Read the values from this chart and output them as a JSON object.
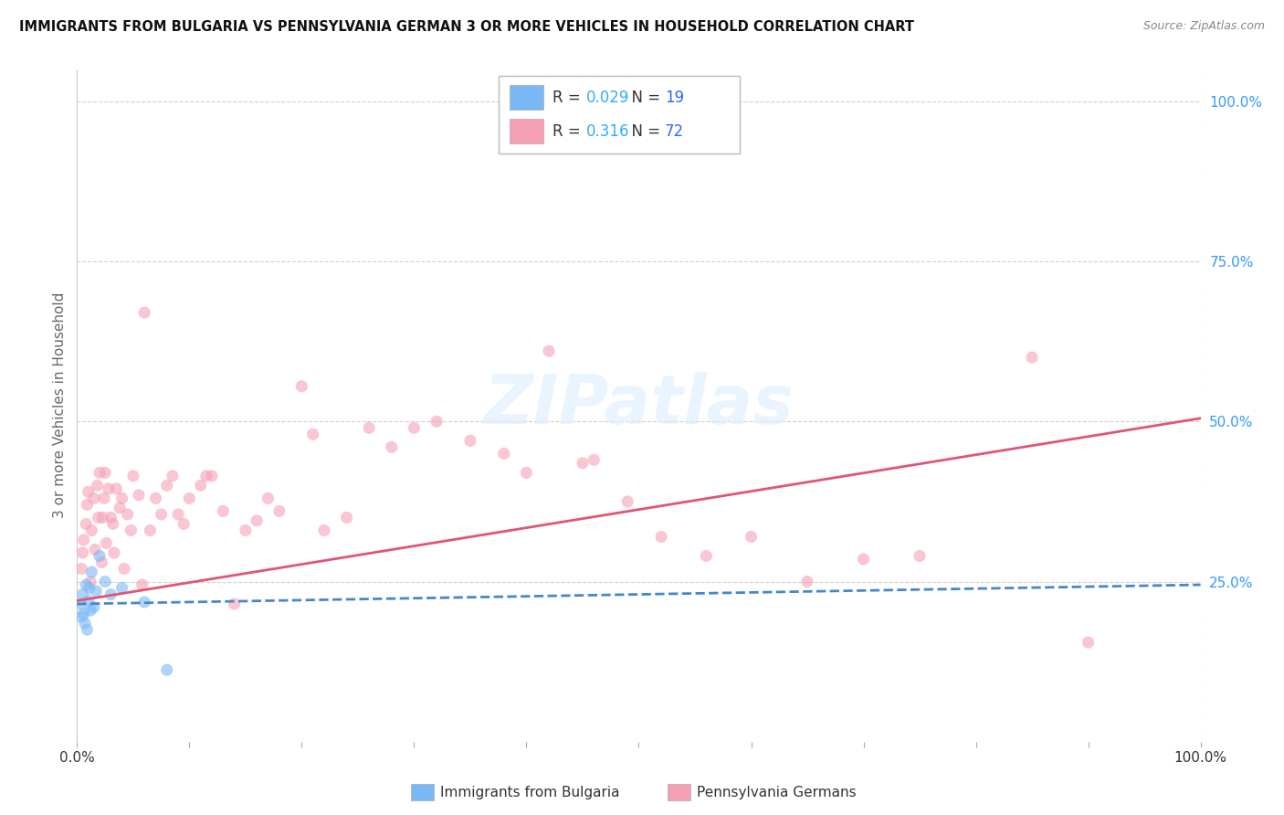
{
  "title": "IMMIGRANTS FROM BULGARIA VS PENNSYLVANIA GERMAN 3 OR MORE VEHICLES IN HOUSEHOLD CORRELATION CHART",
  "source": "Source: ZipAtlas.com",
  "ylabel": "3 or more Vehicles in Household",
  "xlim": [
    0,
    1.0
  ],
  "ylim": [
    0.0,
    1.05
  ],
  "blue_scatter_x": [
    0.003,
    0.004,
    0.005,
    0.006,
    0.007,
    0.008,
    0.009,
    0.01,
    0.011,
    0.012,
    0.013,
    0.015,
    0.017,
    0.02,
    0.025,
    0.03,
    0.04,
    0.06,
    0.08
  ],
  "blue_scatter_y": [
    0.215,
    0.195,
    0.23,
    0.2,
    0.185,
    0.245,
    0.175,
    0.22,
    0.24,
    0.205,
    0.265,
    0.21,
    0.235,
    0.29,
    0.25,
    0.23,
    0.24,
    0.218,
    0.112
  ],
  "pink_scatter_x": [
    0.004,
    0.005,
    0.006,
    0.008,
    0.009,
    0.01,
    0.012,
    0.013,
    0.015,
    0.016,
    0.018,
    0.019,
    0.02,
    0.022,
    0.023,
    0.024,
    0.025,
    0.026,
    0.028,
    0.03,
    0.032,
    0.033,
    0.035,
    0.038,
    0.04,
    0.042,
    0.045,
    0.048,
    0.05,
    0.055,
    0.058,
    0.06,
    0.065,
    0.07,
    0.075,
    0.08,
    0.085,
    0.09,
    0.095,
    0.1,
    0.11,
    0.115,
    0.12,
    0.13,
    0.14,
    0.15,
    0.16,
    0.17,
    0.18,
    0.2,
    0.21,
    0.22,
    0.24,
    0.26,
    0.28,
    0.3,
    0.32,
    0.35,
    0.38,
    0.4,
    0.42,
    0.45,
    0.46,
    0.49,
    0.52,
    0.56,
    0.6,
    0.65,
    0.7,
    0.75,
    0.85,
    0.9
  ],
  "pink_scatter_y": [
    0.27,
    0.295,
    0.315,
    0.34,
    0.37,
    0.39,
    0.25,
    0.33,
    0.38,
    0.3,
    0.4,
    0.35,
    0.42,
    0.28,
    0.35,
    0.38,
    0.42,
    0.31,
    0.395,
    0.35,
    0.34,
    0.295,
    0.395,
    0.365,
    0.38,
    0.27,
    0.355,
    0.33,
    0.415,
    0.385,
    0.245,
    0.67,
    0.33,
    0.38,
    0.355,
    0.4,
    0.415,
    0.355,
    0.34,
    0.38,
    0.4,
    0.415,
    0.415,
    0.36,
    0.215,
    0.33,
    0.345,
    0.38,
    0.36,
    0.555,
    0.48,
    0.33,
    0.35,
    0.49,
    0.46,
    0.49,
    0.5,
    0.47,
    0.45,
    0.42,
    0.61,
    0.435,
    0.44,
    0.375,
    0.32,
    0.29,
    0.32,
    0.25,
    0.285,
    0.29,
    0.6,
    0.155
  ],
  "blue_line_x": [
    0.0,
    1.0
  ],
  "blue_line_y": [
    0.215,
    0.245
  ],
  "pink_line_x": [
    0.0,
    1.0
  ],
  "pink_line_y": [
    0.22,
    0.505
  ],
  "scatter_alpha": 0.6,
  "scatter_size": 90,
  "blue_color": "#7ab8f5",
  "pink_color": "#f5a0b5",
  "blue_line_color": "#4488cc",
  "pink_line_color": "#e05575",
  "grid_color": "#d0d0d0",
  "background_color": "#ffffff",
  "R_blue": "0.029",
  "N_blue": "19",
  "R_pink": "0.316",
  "N_pink": "72",
  "yticks": [
    0.25,
    0.5,
    0.75,
    1.0
  ],
  "ytick_labels": [
    "25.0%",
    "50.0%",
    "75.0%",
    "100.0%"
  ],
  "xticks": [
    0.0,
    0.1,
    0.2,
    0.3,
    0.4,
    0.5,
    0.6,
    0.7,
    0.8,
    0.9,
    1.0
  ],
  "xtick_labels": [
    "0.0%",
    "",
    "",
    "",
    "",
    "",
    "",
    "",
    "",
    "",
    "100.0%"
  ]
}
